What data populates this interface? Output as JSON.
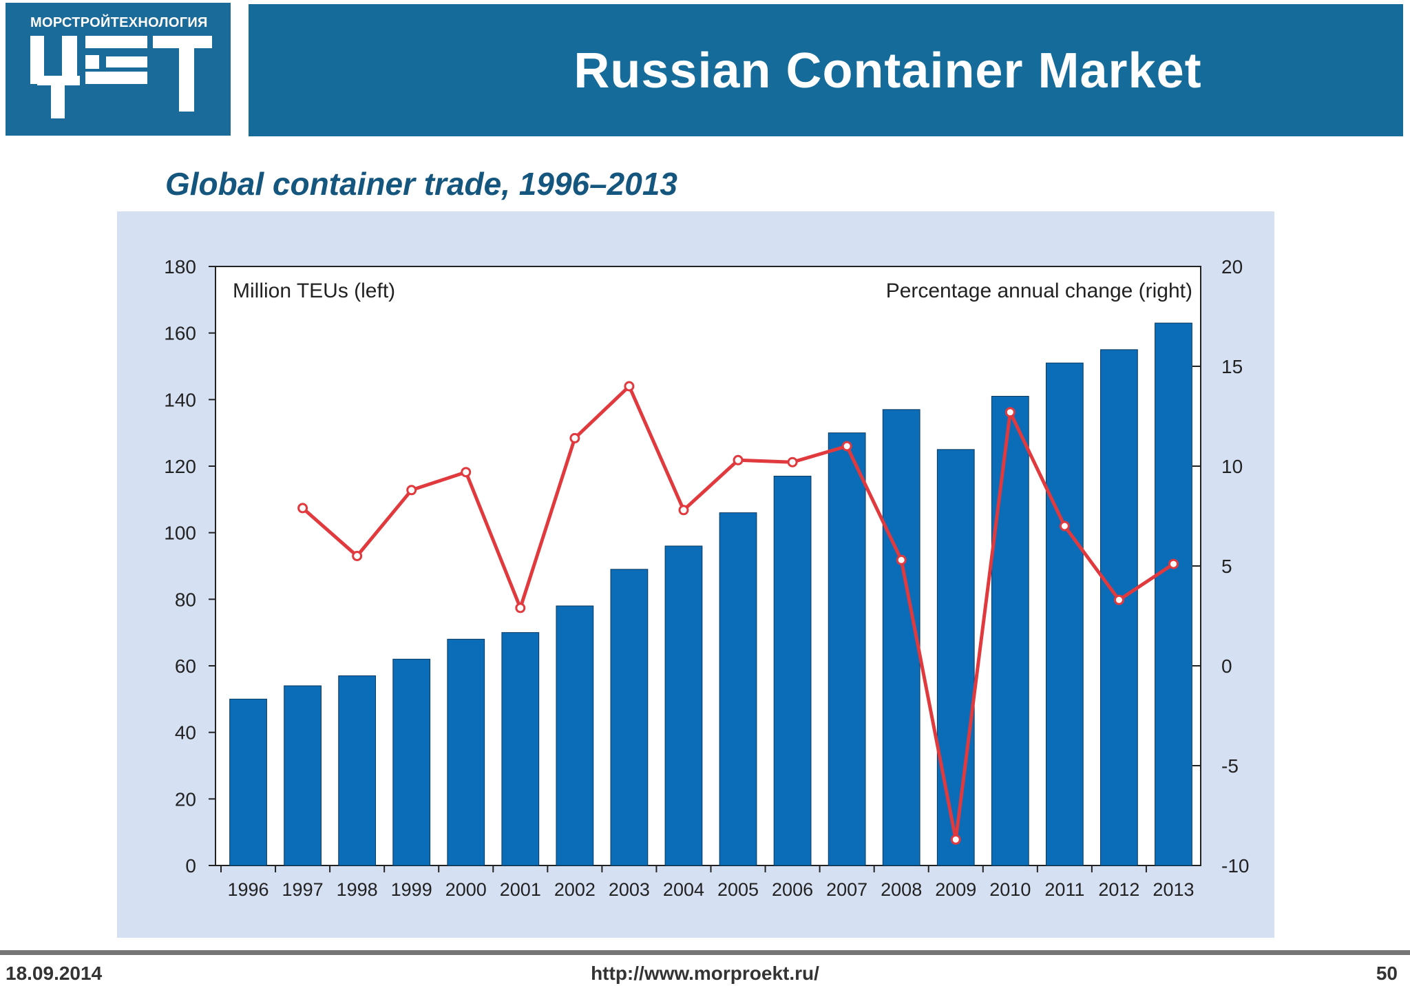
{
  "header": {
    "company": "МОРСТРОЙТЕХНОЛОГИЯ",
    "title": "Russian Container Market",
    "logo_icon": "mst-logo-icon",
    "bar_color": "#156b99",
    "logo_color": "#1a6a9a"
  },
  "chart_data": {
    "type": "bar+line",
    "title": "Global container trade, 1996–2013",
    "left_label": "Million TEUs (left)",
    "right_label": "Percentage annual change (right)",
    "categories": [
      "1996",
      "1997",
      "1998",
      "1999",
      "2000",
      "2001",
      "2002",
      "2003",
      "2004",
      "2005",
      "2006",
      "2007",
      "2008",
      "2009",
      "2010",
      "2011",
      "2012",
      "2013"
    ],
    "series": [
      {
        "name": "Million TEUs",
        "type": "bar",
        "axis": "left",
        "color": "#0b6cb7",
        "values": [
          50,
          54,
          57,
          62,
          68,
          70,
          78,
          89,
          96,
          106,
          117,
          130,
          137,
          125,
          141,
          151,
          155,
          163
        ]
      },
      {
        "name": "Percentage annual change",
        "type": "line",
        "axis": "right",
        "color": "#e03a3e",
        "values": [
          null,
          7.9,
          5.5,
          8.8,
          9.7,
          2.9,
          11.4,
          14.0,
          7.8,
          10.3,
          10.2,
          11.0,
          5.3,
          -8.7,
          12.7,
          7.0,
          3.3,
          5.1
        ]
      }
    ],
    "left_axis": {
      "min": 0,
      "max": 180,
      "ticks": [
        "0",
        "20",
        "40",
        "60",
        "80",
        "100",
        "120",
        "140",
        "160",
        "180"
      ]
    },
    "right_axis": {
      "min": -10,
      "max": 20,
      "ticks": [
        "-10",
        "-5",
        "0",
        "5",
        "10",
        "15",
        "20"
      ]
    },
    "panel_color": "#d5e0f3"
  },
  "footer": {
    "date": "18.09.2014",
    "url": "http://www.morproekt.ru/",
    "page": "50"
  }
}
